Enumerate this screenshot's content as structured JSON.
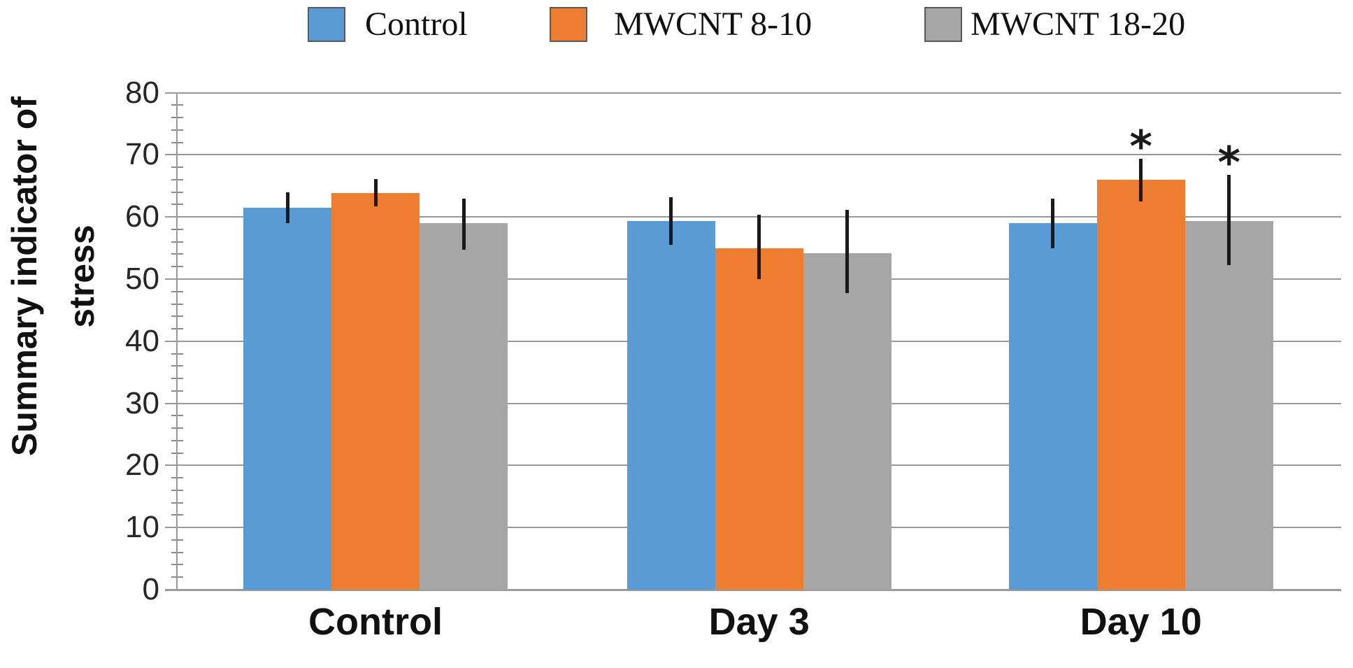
{
  "legend": [
    {
      "label": "Control",
      "color": "#5B9BD5"
    },
    {
      "label": "MWCNT 8-10",
      "color": "#ED7D31"
    },
    {
      "label": "MWCNT 18-20",
      "color": "#A6A6A6"
    }
  ],
  "y_axis": {
    "title_line1": "Summary indicator of",
    "title_line2": "stress",
    "ticks": [
      0,
      10,
      20,
      30,
      40,
      50,
      60,
      70,
      80
    ],
    "minor_tick_step": 2,
    "min": 0,
    "max": 80
  },
  "chart_data": {
    "type": "bar",
    "title": "",
    "xlabel": "",
    "ylabel": "Summary indicator of stress",
    "ylim": [
      0,
      80
    ],
    "grid": true,
    "legend_position": "top",
    "significance_marker": "*",
    "categories": [
      "Control",
      "Day 3",
      "Day 10"
    ],
    "series": [
      {
        "name": "Control",
        "color": "#5B9BD5",
        "values": [
          61.5,
          59.3,
          59.0
        ],
        "err_low": [
          59.0,
          55.5,
          55.0
        ],
        "err_high": [
          64.0,
          63.2,
          63.0
        ],
        "significant": [
          false,
          false,
          false
        ]
      },
      {
        "name": "MWCNT 8-10",
        "color": "#ED7D31",
        "values": [
          63.8,
          55.0,
          66.0
        ],
        "err_low": [
          61.7,
          50.0,
          62.5
        ],
        "err_high": [
          66.1,
          60.4,
          69.4
        ],
        "significant": [
          false,
          false,
          true
        ]
      },
      {
        "name": "MWCNT 18-20",
        "color": "#A6A6A6",
        "values": [
          59.0,
          54.2,
          59.3
        ],
        "err_low": [
          54.7,
          47.7,
          52.2
        ],
        "err_high": [
          63.0,
          61.2,
          66.8
        ],
        "significant": [
          false,
          false,
          true
        ]
      }
    ]
  }
}
